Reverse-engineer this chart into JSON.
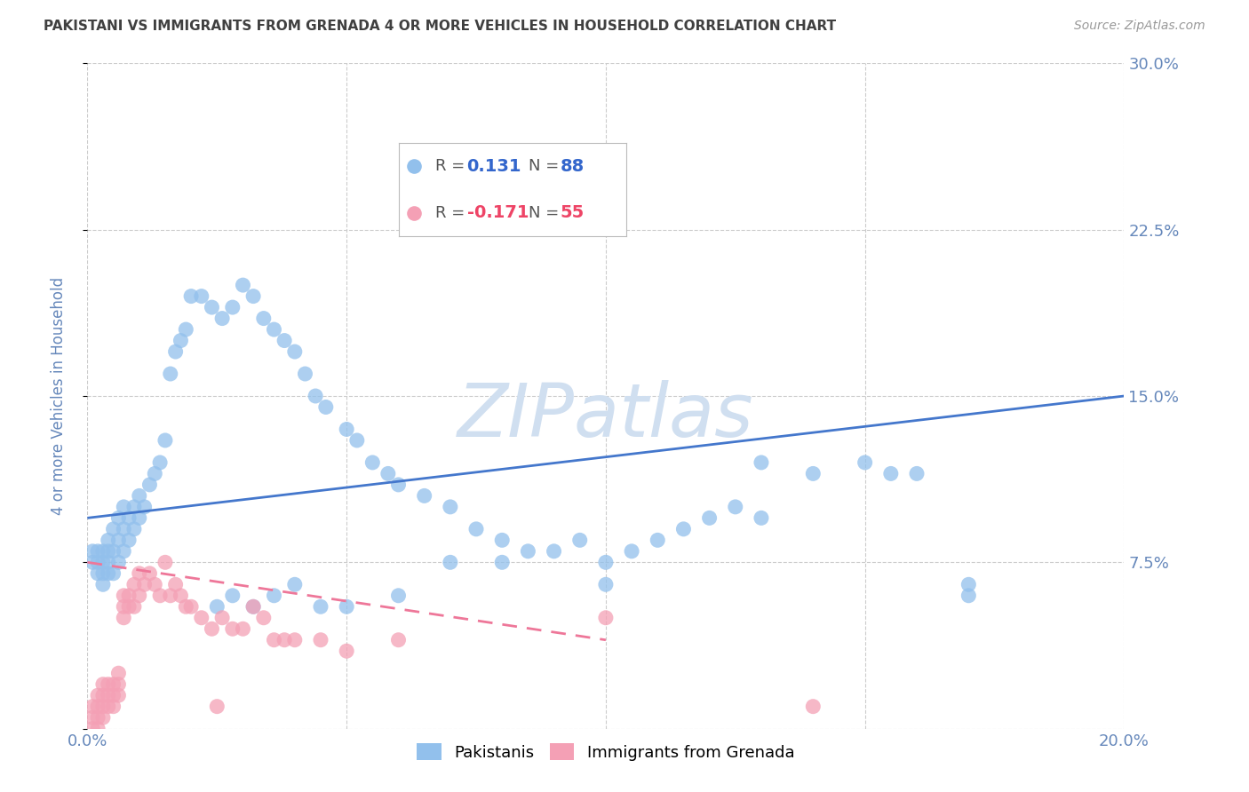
{
  "title": "PAKISTANI VS IMMIGRANTS FROM GRENADA 4 OR MORE VEHICLES IN HOUSEHOLD CORRELATION CHART",
  "source": "Source: ZipAtlas.com",
  "ylabel": "4 or more Vehicles in Household",
  "xlim": [
    0.0,
    0.2
  ],
  "ylim": [
    0.0,
    0.3
  ],
  "yticks": [
    0.0,
    0.075,
    0.15,
    0.225,
    0.3
  ],
  "ytick_labels": [
    "",
    "7.5%",
    "15.0%",
    "22.5%",
    "30.0%"
  ],
  "xticks": [
    0.0,
    0.05,
    0.1,
    0.15,
    0.2
  ],
  "xtick_labels": [
    "0.0%",
    "",
    "",
    "",
    "20.0%"
  ],
  "blue_R": 0.131,
  "blue_N": 88,
  "pink_R": -0.171,
  "pink_N": 55,
  "blue_color": "#92C0EC",
  "pink_color": "#F4A0B5",
  "blue_line_color": "#4477CC",
  "pink_line_color": "#EE7799",
  "watermark": "ZIPatlas",
  "watermark_color": "#D0DFF0",
  "background_color": "#FFFFFF",
  "grid_color": "#CCCCCC",
  "title_color": "#404040",
  "axis_label_color": "#6688BB",
  "legend_R_color_blue": "#3366CC",
  "legend_R_color_pink": "#EE4466",
  "blue_line_x0": 0.0,
  "blue_line_y0": 0.095,
  "blue_line_x1": 0.2,
  "blue_line_y1": 0.15,
  "pink_line_x0": 0.0,
  "pink_line_y0": 0.075,
  "pink_line_x1": 0.1,
  "pink_line_y1": 0.04,
  "blue_x": [
    0.001,
    0.001,
    0.002,
    0.002,
    0.002,
    0.003,
    0.003,
    0.003,
    0.003,
    0.004,
    0.004,
    0.004,
    0.004,
    0.005,
    0.005,
    0.005,
    0.006,
    0.006,
    0.006,
    0.007,
    0.007,
    0.007,
    0.008,
    0.008,
    0.009,
    0.009,
    0.01,
    0.01,
    0.011,
    0.012,
    0.013,
    0.014,
    0.015,
    0.016,
    0.017,
    0.018,
    0.019,
    0.02,
    0.022,
    0.024,
    0.026,
    0.028,
    0.03,
    0.032,
    0.034,
    0.036,
    0.038,
    0.04,
    0.042,
    0.044,
    0.046,
    0.05,
    0.052,
    0.055,
    0.058,
    0.06,
    0.065,
    0.07,
    0.075,
    0.08,
    0.085,
    0.09,
    0.095,
    0.1,
    0.105,
    0.11,
    0.115,
    0.12,
    0.125,
    0.13,
    0.14,
    0.15,
    0.16,
    0.17,
    0.025,
    0.028,
    0.032,
    0.036,
    0.04,
    0.045,
    0.05,
    0.06,
    0.07,
    0.08,
    0.1,
    0.13,
    0.155,
    0.17
  ],
  "blue_y": [
    0.075,
    0.08,
    0.07,
    0.075,
    0.08,
    0.065,
    0.07,
    0.075,
    0.08,
    0.07,
    0.075,
    0.08,
    0.085,
    0.07,
    0.08,
    0.09,
    0.075,
    0.085,
    0.095,
    0.08,
    0.09,
    0.1,
    0.085,
    0.095,
    0.09,
    0.1,
    0.095,
    0.105,
    0.1,
    0.11,
    0.115,
    0.12,
    0.13,
    0.16,
    0.17,
    0.175,
    0.18,
    0.195,
    0.195,
    0.19,
    0.185,
    0.19,
    0.2,
    0.195,
    0.185,
    0.18,
    0.175,
    0.17,
    0.16,
    0.15,
    0.145,
    0.135,
    0.13,
    0.12,
    0.115,
    0.11,
    0.105,
    0.1,
    0.09,
    0.085,
    0.08,
    0.08,
    0.085,
    0.075,
    0.08,
    0.085,
    0.09,
    0.095,
    0.1,
    0.095,
    0.115,
    0.12,
    0.115,
    0.06,
    0.055,
    0.06,
    0.055,
    0.06,
    0.065,
    0.055,
    0.055,
    0.06,
    0.075,
    0.075,
    0.065,
    0.12,
    0.115,
    0.065
  ],
  "pink_x": [
    0.001,
    0.001,
    0.001,
    0.002,
    0.002,
    0.002,
    0.002,
    0.003,
    0.003,
    0.003,
    0.003,
    0.004,
    0.004,
    0.004,
    0.005,
    0.005,
    0.005,
    0.006,
    0.006,
    0.006,
    0.007,
    0.007,
    0.007,
    0.008,
    0.008,
    0.009,
    0.009,
    0.01,
    0.01,
    0.011,
    0.012,
    0.013,
    0.014,
    0.015,
    0.016,
    0.017,
    0.018,
    0.019,
    0.02,
    0.022,
    0.024,
    0.026,
    0.028,
    0.03,
    0.032,
    0.034,
    0.036,
    0.038,
    0.04,
    0.045,
    0.05,
    0.06,
    0.1,
    0.14,
    0.025
  ],
  "pink_y": [
    0.0,
    0.005,
    0.01,
    0.0,
    0.005,
    0.01,
    0.015,
    0.005,
    0.01,
    0.015,
    0.02,
    0.01,
    0.015,
    0.02,
    0.01,
    0.015,
    0.02,
    0.015,
    0.02,
    0.025,
    0.05,
    0.055,
    0.06,
    0.055,
    0.06,
    0.055,
    0.065,
    0.06,
    0.07,
    0.065,
    0.07,
    0.065,
    0.06,
    0.075,
    0.06,
    0.065,
    0.06,
    0.055,
    0.055,
    0.05,
    0.045,
    0.05,
    0.045,
    0.045,
    0.055,
    0.05,
    0.04,
    0.04,
    0.04,
    0.04,
    0.035,
    0.04,
    0.05,
    0.01,
    0.01
  ]
}
